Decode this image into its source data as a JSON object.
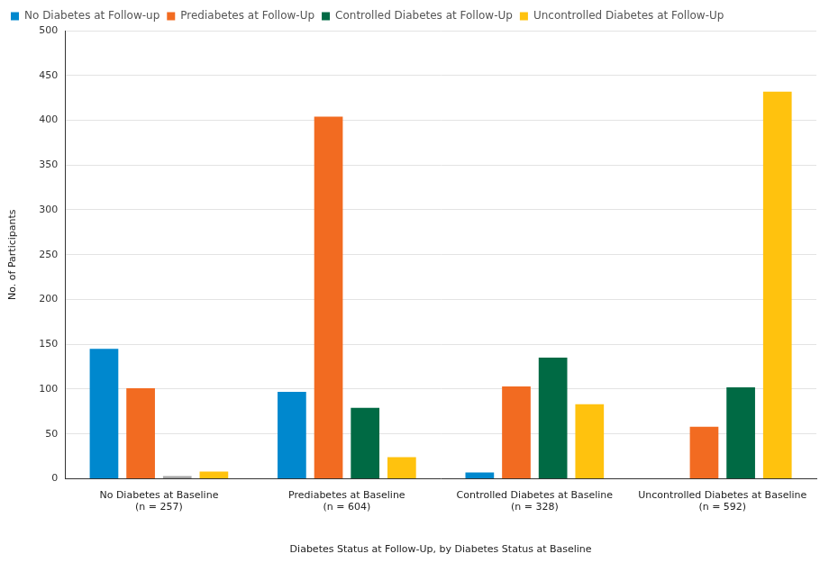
{
  "chart_data": {
    "type": "bar",
    "x_label": "Diabetes Status at Follow-Up, by Diabetes Status at Baseline",
    "y_label": "No. of Participants",
    "categories": [
      [
        "No Diabetes at Baseline",
        "(n = 257)"
      ],
      [
        "Prediabetes at Baseline",
        "(n = 604)"
      ],
      [
        "Controlled Diabetes at Baseline",
        "(n = 328)"
      ],
      [
        "Uncontrolled Diabetes at Baseline",
        "(n = 592)"
      ]
    ],
    "series": [
      {
        "name": "No Diabetes at Follow-up",
        "color": "#0088ce",
        "values": [
          145,
          97,
          7,
          0
        ]
      },
      {
        "name": "Prediabetes at Follow-Up",
        "color": "#f26b21",
        "values": [
          101,
          404,
          103,
          58
        ]
      },
      {
        "name": "Controlled Diabetes at Follow-Up",
        "color": "#006a44",
        "colors": [
          "#a6a6a6",
          "#006a44",
          "#006a44",
          "#006a44"
        ],
        "values": [
          3,
          79,
          135,
          102
        ]
      },
      {
        "name": "Uncontrolled Diabetes at Follow-Up",
        "color": "#ffc20e",
        "values": [
          8,
          24,
          83,
          432
        ]
      }
    ],
    "ylim": [
      0,
      500
    ],
    "yticks": [
      0,
      50,
      100,
      150,
      200,
      250,
      300,
      350,
      400,
      450,
      500
    ],
    "grid": true,
    "legend": "top-left"
  }
}
